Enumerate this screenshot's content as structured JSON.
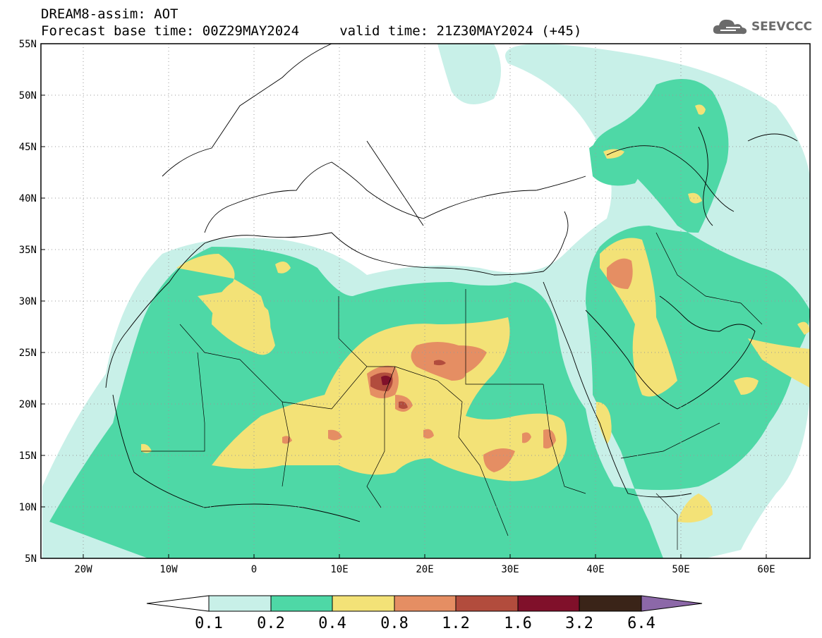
{
  "header": {
    "title_line1": "DREAM8-assim: AOT",
    "title_line2": "Forecast base time: 00Z29MAY2024     valid time: 21Z30MAY2024 (+45)",
    "brand": "SEEVCCC"
  },
  "axes": {
    "lat_labels": [
      "55N",
      "50N",
      "45N",
      "40N",
      "35N",
      "30N",
      "25N",
      "20N",
      "15N",
      "10N",
      "5N"
    ],
    "lon_labels": [
      "20W",
      "10W",
      "0",
      "10E",
      "20E",
      "30E",
      "40E",
      "50E",
      "60E"
    ]
  },
  "colorbar": {
    "levels": [
      "0.1",
      "0.2",
      "0.4",
      "0.8",
      "1.2",
      "1.6",
      "3.2",
      "6.4"
    ],
    "colors": [
      "#c8f0e8",
      "#4ed8a6",
      "#f3e277",
      "#e58e63",
      "#b24c3d",
      "#80102a",
      "#3a2418",
      "#8c68a8"
    ]
  },
  "icons": [
    "cloud-logo-icon"
  ]
}
